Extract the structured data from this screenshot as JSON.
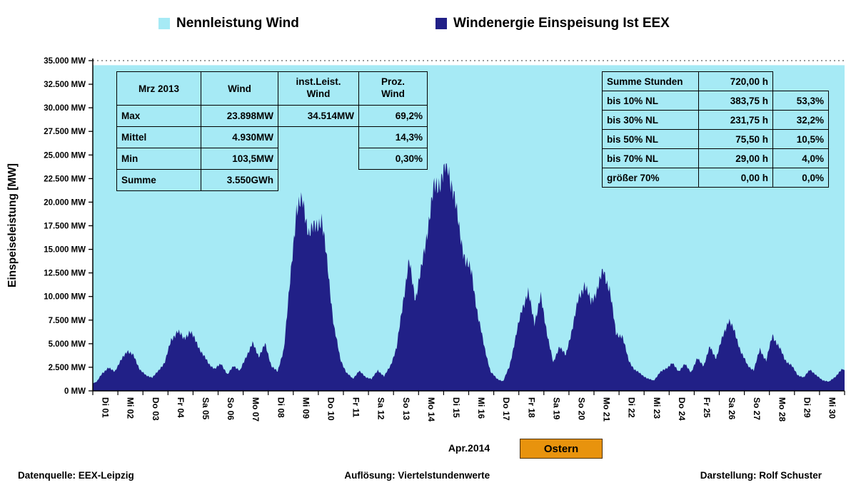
{
  "legend": {
    "items": [
      {
        "label": "Nennleistung Wind",
        "color": "#A6EAF5"
      },
      {
        "label": "Windenergie Einspeisung Ist EEX",
        "color": "#212087"
      }
    ]
  },
  "y_axis": {
    "title": "Einspeiseleistung  [MW]",
    "ticks": [
      "35.000 MW",
      "32.500 MW",
      "30.000 MW",
      "27.500 MW",
      "25.000 MW",
      "22.500 MW",
      "20.000 MW",
      "17.500 MW",
      "15.000 MW",
      "12.500 MW",
      "10.000 MW",
      "7.500 MW",
      "5.000 MW",
      "2.500 MW",
      "0 MW"
    ]
  },
  "x_axis": {
    "labels": [
      "Di 01",
      "Mi 02",
      "Do 03",
      "Fr 04",
      "Sa 05",
      "So 06",
      "Mo 07",
      "Di 08",
      "Mi 09",
      "Do 10",
      "Fr 11",
      "Sa 12",
      "So 13",
      "Mo 14",
      "Di 15",
      "Mi 16",
      "Do 17",
      "Fr 18",
      "Sa 19",
      "So 20",
      "Mo 21",
      "Di 22",
      "Mi 23",
      "Do 24",
      "Fr 25",
      "Sa 26",
      "So 27",
      "Mo 28",
      "Di 29",
      "Mi 30"
    ],
    "month_label": "Apr.2014",
    "easter_label": "Ostern"
  },
  "stats_table": {
    "header": {
      "c0": "Mrz 2013",
      "c1": "Wind",
      "c2": "inst.Leist.\nWind",
      "c3": "Proz.\nWind"
    },
    "rows": [
      {
        "c0": "Max",
        "c1": "23.898MW",
        "c2": "34.514MW",
        "c3": "69,2%"
      },
      {
        "c0": "Mittel",
        "c1": "4.930MW",
        "c2": "",
        "c3": "14,3%"
      },
      {
        "c0": "Min",
        "c1": "103,5MW",
        "c2": "",
        "c3": "0,30%"
      },
      {
        "c0": "Summe",
        "c1": "3.550GWh",
        "c2": "",
        "c3": ""
      }
    ]
  },
  "hours_table": {
    "rows": [
      {
        "label": "Summe Stunden",
        "hours": "720,00 h",
        "pct": ""
      },
      {
        "label": "bis 10% NL",
        "hours": "383,75 h",
        "pct": "53,3%"
      },
      {
        "label": "bis 30% NL",
        "hours": "231,75 h",
        "pct": "32,2%"
      },
      {
        "label": "bis 50% NL",
        "hours": "75,50 h",
        "pct": "10,5%"
      },
      {
        "label": "bis 70% NL",
        "hours": "29,00 h",
        "pct": "4,0%"
      },
      {
        "label": "größer 70%",
        "hours": "0,00 h",
        "pct": "0,0%"
      }
    ]
  },
  "footer": {
    "left": "Datenquelle: EEX-Leipzig",
    "center": "Auflösung: Viertelstundenwerte",
    "right": "Darstellung: Rolf Schuster"
  },
  "colors": {
    "capacity": "#A6EAF5",
    "wind": "#212087",
    "easter": "#E8930D"
  },
  "chart_data": {
    "type": "area",
    "title": "Windenergie Einspeisung Ist EEX vs. Nennleistung Wind",
    "ylabel": "Einspeiseleistung [MW]",
    "ylim": [
      0,
      35000
    ],
    "y_tick_step": 2500,
    "grid": "top-dotted-only",
    "legend_position": "top",
    "month": "Apr.2014",
    "capacity_mw": 34514,
    "stats": {
      "max_mw": 23898,
      "mean_mw": 4930,
      "min_mw": 103.5,
      "sum_gwh": 3550
    },
    "x_labels": [
      "Di 01",
      "Mi 02",
      "Do 03",
      "Fr 04",
      "Sa 05",
      "So 06",
      "Mo 07",
      "Di 08",
      "Mi 09",
      "Do 10",
      "Fr 11",
      "Sa 12",
      "So 13",
      "Mo 14",
      "Di 15",
      "Mi 16",
      "Do 17",
      "Fr 18",
      "Sa 19",
      "So 20",
      "Mo 21",
      "Di 22",
      "Mi 23",
      "Do 24",
      "Fr 25",
      "Sa 26",
      "So 27",
      "Mo 28",
      "Di 29",
      "Mi 30"
    ],
    "series": [
      {
        "name": "Nennleistung Wind",
        "type": "background-fill",
        "value_mw": 34514
      },
      {
        "name": "Windenergie Einspeisung Ist EEX",
        "unit": "MW",
        "samples_per_day": 4,
        "values": [
          800,
          1900,
          2400,
          2100,
          3200,
          4300,
          3700,
          2300,
          1600,
          1450,
          2100,
          3100,
          5300,
          6400,
          5500,
          6300,
          5200,
          3900,
          2900,
          2300,
          2900,
          1700,
          2700,
          2100,
          3700,
          5000,
          3700,
          4900,
          2700,
          2000,
          4500,
          11500,
          19400,
          19900,
          16800,
          17300,
          18300,
          13000,
          6800,
          3400,
          1900,
          1300,
          2100,
          1500,
          1250,
          2200,
          1500,
          2700,
          4500,
          9500,
          13600,
          9800,
          13000,
          17500,
          21500,
          22300,
          23898,
          21500,
          17000,
          13800,
          12400,
          7800,
          4700,
          2000,
          1300,
          1000,
          2600,
          5600,
          8800,
          10300,
          7300,
          9900,
          6200,
          2900,
          4800,
          3700,
          6600,
          9600,
          11400,
          9300,
          10800,
          12700,
          10800,
          6100,
          5800,
          3300,
          2200,
          1800,
          1300,
          1100,
          1900,
          2400,
          2900,
          2100,
          2800,
          2000,
          3400,
          2700,
          4600,
          3500,
          5600,
          7600,
          6100,
          4100,
          2700,
          2200,
          4400,
          3200,
          5900,
          4700,
          3300,
          2700,
          1700,
          1400,
          2300,
          1600,
          1150,
          950,
          1500,
          2200
        ]
      }
    ]
  }
}
